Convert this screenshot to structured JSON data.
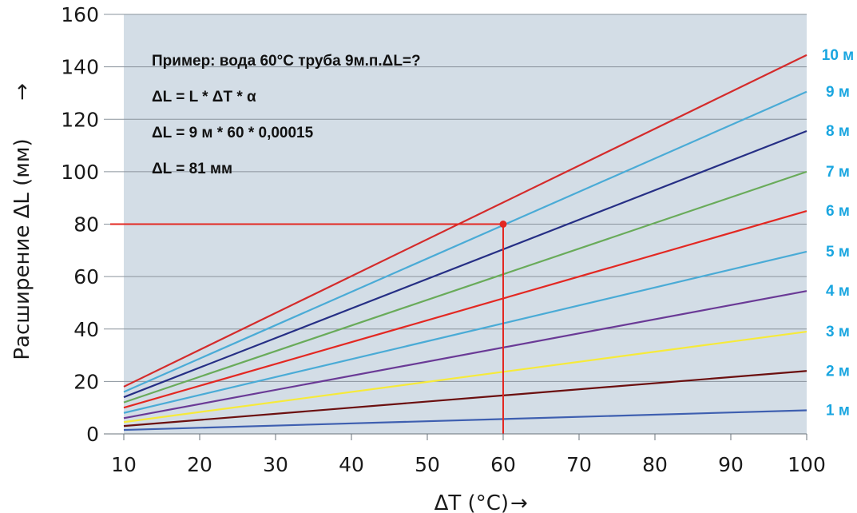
{
  "chart_data": {
    "type": "line",
    "title": "",
    "xlabel": "ΔT (°C)",
    "ylabel": "Расширение  ΔL (мм)",
    "xlim": [
      10,
      100
    ],
    "ylim": [
      0,
      160
    ],
    "x_ticks": [
      10,
      20,
      30,
      40,
      50,
      60,
      70,
      80,
      90,
      100
    ],
    "y_ticks": [
      0,
      20,
      40,
      60,
      80,
      100,
      120,
      140,
      160
    ],
    "grid": "horizontal",
    "legend": "right",
    "x": [
      10,
      100
    ],
    "series": [
      {
        "name": "1 м",
        "color": "#3e5fb0",
        "values": [
          1.5,
          9
        ]
      },
      {
        "name": "2 м",
        "color": "#6b0f0f",
        "values": [
          3,
          24
        ]
      },
      {
        "name": "3 м",
        "color": "#f6ea3a",
        "values": [
          4.5,
          39
        ]
      },
      {
        "name": "4 м",
        "color": "#6a3a96",
        "values": [
          6,
          54.5
        ]
      },
      {
        "name": "5 м",
        "color": "#4aabd6",
        "values": [
          8,
          69.5
        ]
      },
      {
        "name": "6 м",
        "color": "#e32822",
        "values": [
          10,
          85
        ]
      },
      {
        "name": "7 м",
        "color": "#69ab5a",
        "values": [
          12,
          100
        ]
      },
      {
        "name": "8 м",
        "color": "#262f85",
        "values": [
          14,
          115.5
        ]
      },
      {
        "name": "9 м",
        "color": "#4aabd6",
        "values": [
          16,
          130.5
        ]
      },
      {
        "name": "10 м",
        "color": "#d42b2b",
        "values": [
          18,
          144.5
        ]
      }
    ],
    "example_point": {
      "x": 60,
      "y": 80,
      "color": "#e32822"
    },
    "annotations": [
      "Пример: вода 60°C труба 9м.п.ΔL=?",
      "ΔL = L * ΔT * α",
      "ΔL = 9 м * 60 * 0,00015",
      "ΔL = 81 мм"
    ],
    "label_color": "#1aa6e0",
    "background_color": "#d3dde6",
    "grid_color": "#8a939c"
  }
}
